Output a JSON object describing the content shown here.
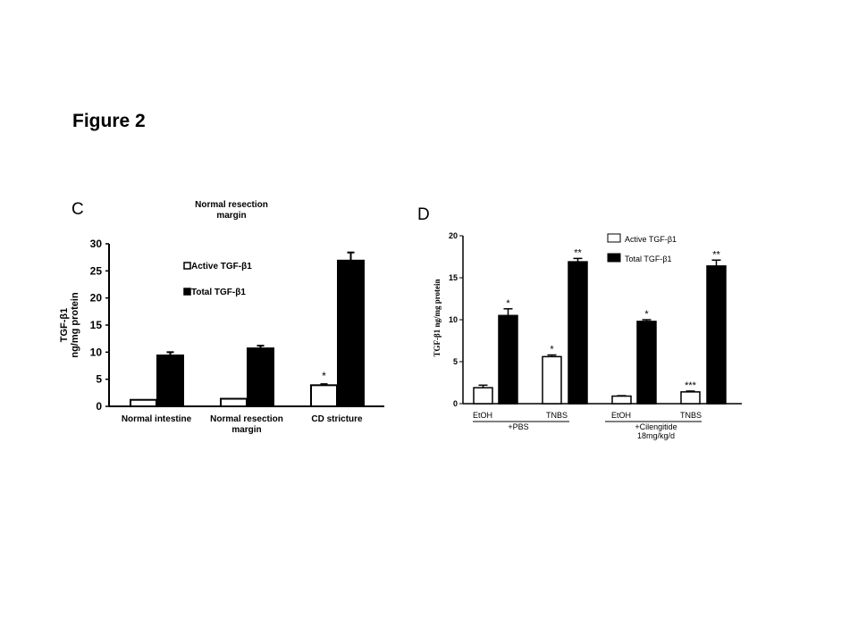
{
  "figure_title": "Figure 2",
  "chart_data": [
    {
      "panel": "C",
      "type": "bar",
      "title": "Normal resection margin",
      "title_lines": [
        "Normal resection",
        "margin"
      ],
      "ylabel_lines": [
        "TGF-β1",
        "ng/mg protein"
      ],
      "ylim": [
        0,
        30
      ],
      "yticks": [
        0,
        5,
        10,
        15,
        20,
        25,
        30
      ],
      "categories": [
        "Normal intestine",
        "Normal resection margin",
        "CD stricture"
      ],
      "category_lines": [
        [
          "Normal intestine"
        ],
        [
          "Normal resection",
          "margin"
        ],
        [
          "CD stricture"
        ]
      ],
      "legend_placement": "top-left",
      "series": [
        {
          "name": "Active TGF-β1",
          "color": "#ffffff",
          "values": [
            1.2,
            1.4,
            3.9
          ],
          "errors": [
            0,
            0,
            0.2
          ],
          "annotations": [
            "",
            "",
            "*"
          ]
        },
        {
          "name": "Total TGF-β1",
          "color": "#000000",
          "values": [
            9.4,
            10.7,
            26.9
          ],
          "errors": [
            0.6,
            0.5,
            1.5
          ],
          "annotations": [
            "",
            "",
            ""
          ]
        }
      ]
    },
    {
      "panel": "D",
      "type": "bar",
      "title": "",
      "ylabel_lines": [
        "TGF-β1 ng/mg protein"
      ],
      "ylim": [
        0,
        20
      ],
      "yticks": [
        0,
        5,
        10,
        15,
        20
      ],
      "categories": [
        "EtOH",
        "TNBS",
        "EtOH",
        "TNBS"
      ],
      "groups": [
        {
          "lines": [
            "+PBS"
          ]
        },
        {
          "lines": [
            "+Cilengitide",
            "18mg/kg/d"
          ]
        }
      ],
      "legend_placement": "top-right",
      "series": [
        {
          "name": "Active TGF-β1",
          "color": "#ffffff",
          "values": [
            1.9,
            5.6,
            0.9,
            1.4
          ],
          "errors": [
            0.3,
            0.2,
            0.05,
            0.1
          ],
          "annotations": [
            "",
            "*",
            "",
            "***"
          ]
        },
        {
          "name": "Total  TGF-β1",
          "color": "#000000",
          "values": [
            10.5,
            16.9,
            9.8,
            16.4
          ],
          "errors": [
            0.8,
            0.4,
            0.2,
            0.7
          ],
          "annotations": [
            "*",
            "**",
            "*",
            "**"
          ]
        }
      ]
    }
  ]
}
